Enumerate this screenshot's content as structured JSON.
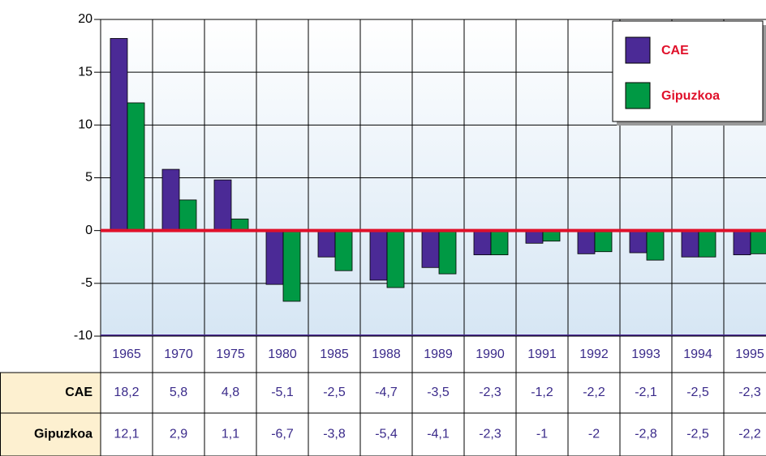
{
  "chart_data": {
    "type": "bar",
    "categories": [
      "1965",
      "1970",
      "1975",
      "1980",
      "1985",
      "1988",
      "1989",
      "1990",
      "1991",
      "1992",
      "1993",
      "1994",
      "1995"
    ],
    "series": [
      {
        "name": "CAE",
        "color": "#4b2a96",
        "values": [
          18.2,
          5.8,
          4.8,
          -5.1,
          -2.5,
          -4.7,
          -3.5,
          -2.3,
          -1.2,
          -2.2,
          -2.1,
          -2.5,
          -2.3
        ],
        "value_labels": [
          "18,2",
          "5,8",
          "4,8",
          "-5,1",
          "-2,5",
          "-4,7",
          "-3,5",
          "-2,3",
          "-1,2",
          "-2,2",
          "-2,1",
          "-2,5",
          "-2,3"
        ]
      },
      {
        "name": "Gipuzkoa",
        "color": "#009944",
        "values": [
          12.1,
          2.9,
          1.1,
          -6.7,
          -3.8,
          -5.4,
          -4.1,
          -2.3,
          -1,
          -2,
          -2.8,
          -2.5,
          -2.2
        ],
        "value_labels": [
          "12,1",
          "2,9",
          "1,1",
          "-6,7",
          "-3,8",
          "-5,4",
          "-4,1",
          "-2,3",
          "-1",
          "-2",
          "-2,8",
          "-2,5",
          "-2,2"
        ]
      }
    ],
    "ylim": [
      -10,
      20
    ],
    "yticks": [
      -10,
      -5,
      0,
      5,
      10,
      15,
      20
    ],
    "grid": true,
    "legend": "top-right"
  }
}
